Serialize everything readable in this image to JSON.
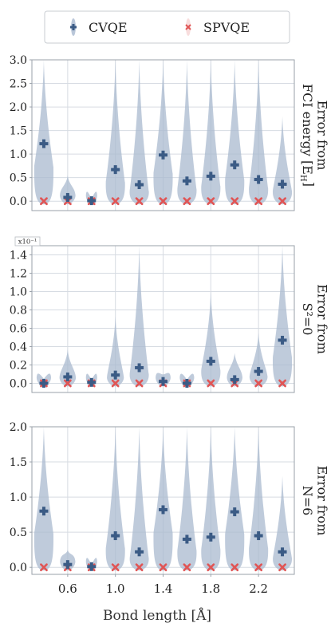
{
  "legend": {
    "items": [
      {
        "label": "CVQE",
        "marker": "plus",
        "color": "#3b5b85"
      },
      {
        "label": "SPVQE",
        "marker": "cross",
        "color": "#e05555"
      }
    ]
  },
  "colors": {
    "violin": "#a9b9cf",
    "cvqe": "#3b5b85",
    "spvqe": "#e05555",
    "grid": "#d6dbe2",
    "frame": "#9aa1aa"
  },
  "xaxis": {
    "label": "Bond length [Å]",
    "ticks": [
      0.6,
      1.0,
      1.4,
      1.8,
      2.2
    ],
    "tick_labels": [
      "0.6",
      "1.0",
      "1.4",
      "1.8",
      "2.2"
    ],
    "xlim": [
      0.3,
      2.5
    ]
  },
  "chart_data": [
    {
      "type": "violin",
      "ylabel_lines": [
        "Error from",
        "FCI energy [E",
        "H",
        "]"
      ],
      "ylim": [
        -0.2,
        3.0
      ],
      "yticks": [
        0.0,
        0.5,
        1.0,
        1.5,
        2.0,
        2.5,
        3.0
      ],
      "ytick_labels": [
        "0.0",
        "0.5",
        "1.0",
        "1.5",
        "2.0",
        "2.5",
        "3.0"
      ],
      "scale_label": "",
      "x": [
        0.4,
        0.6,
        0.8,
        1.0,
        1.2,
        1.4,
        1.6,
        1.8,
        2.0,
        2.2,
        2.4
      ],
      "series": [
        {
          "name": "CVQE",
          "values": [
            1.22,
            0.08,
            0.01,
            0.67,
            0.35,
            0.98,
            0.43,
            0.53,
            0.77,
            0.46,
            0.36
          ]
        },
        {
          "name": "SPVQE",
          "values": [
            0,
            0,
            0,
            0,
            0,
            0,
            0,
            0,
            0,
            0,
            0
          ]
        }
      ],
      "violin_max": [
        3.0,
        0.55,
        0.05,
        3.0,
        3.0,
        3.0,
        3.0,
        3.0,
        3.0,
        3.0,
        1.8
      ]
    },
    {
      "type": "violin",
      "ylabel_lines": [
        "Error from",
        "S²=0"
      ],
      "ylim": [
        -0.1,
        1.5
      ],
      "yticks": [
        0.0,
        0.2,
        0.4,
        0.6,
        0.8,
        1.0,
        1.2,
        1.4
      ],
      "ytick_labels": [
        "0.0",
        "0.2",
        "0.4",
        "0.6",
        "0.8",
        "1.0",
        "1.2",
        "1.4"
      ],
      "scale_label": "x10⁻¹",
      "x": [
        0.4,
        0.6,
        0.8,
        1.0,
        1.2,
        1.4,
        1.6,
        1.8,
        2.0,
        2.2,
        2.4
      ],
      "series": [
        {
          "name": "CVQE",
          "values": [
            0.0,
            0.07,
            0.01,
            0.09,
            0.17,
            0.02,
            0.0,
            0.24,
            0.04,
            0.13,
            0.47
          ]
        },
        {
          "name": "SPVQE",
          "values": [
            0,
            0,
            0,
            0,
            0,
            0,
            0,
            0,
            0,
            0,
            0
          ]
        }
      ],
      "violin_max": [
        0.05,
        0.37,
        0.04,
        0.73,
        1.5,
        0.1,
        0.04,
        1.0,
        0.33,
        0.55,
        1.5
      ]
    },
    {
      "type": "violin",
      "ylabel_lines": [
        "Error from",
        "N=6"
      ],
      "ylim": [
        -0.1,
        2.0
      ],
      "yticks": [
        0.0,
        0.5,
        1.0,
        1.5,
        2.0
      ],
      "ytick_labels": [
        "0.0",
        "0.5",
        "1.0",
        "1.5",
        "2.0"
      ],
      "scale_label": "",
      "x": [
        0.4,
        0.6,
        0.8,
        1.0,
        1.2,
        1.4,
        1.6,
        1.8,
        2.0,
        2.2,
        2.4
      ],
      "series": [
        {
          "name": "CVQE",
          "values": [
            0.8,
            0.04,
            0.01,
            0.45,
            0.22,
            0.82,
            0.4,
            0.43,
            0.79,
            0.45,
            0.22
          ]
        },
        {
          "name": "SPVQE",
          "values": [
            0,
            0,
            0,
            0,
            0,
            0,
            0,
            0,
            0,
            0,
            0
          ]
        }
      ],
      "violin_max": [
        2.0,
        0.25,
        0.04,
        2.0,
        2.0,
        2.0,
        2.0,
        2.0,
        2.0,
        2.0,
        1.3
      ]
    }
  ]
}
